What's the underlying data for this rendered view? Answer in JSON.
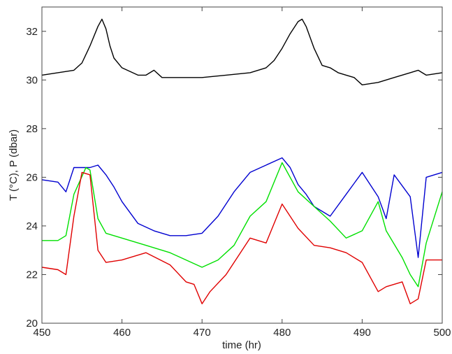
{
  "chart_data": {
    "type": "line",
    "title": "",
    "xlabel": "time (hr)",
    "ylabel": "T (°C), P (dbar)",
    "xlim": [
      450,
      500
    ],
    "ylim": [
      20,
      33
    ],
    "xticks": [
      450,
      460,
      470,
      480,
      490,
      500
    ],
    "yticks": [
      20,
      22,
      24,
      26,
      28,
      30,
      32
    ],
    "grid": false,
    "legend": "none",
    "series": [
      {
        "color": "#000000",
        "x": [
          450,
          452,
          454,
          455,
          456,
          457,
          457.5,
          458,
          458.5,
          459,
          460,
          462,
          463,
          464,
          465,
          467,
          470,
          473,
          476,
          478,
          479,
          480,
          481,
          482,
          482.5,
          483,
          484,
          485,
          486,
          487,
          488,
          489,
          490,
          492,
          494,
          496,
          497,
          498,
          500
        ],
        "values": [
          30.2,
          30.3,
          30.4,
          30.7,
          31.4,
          32.2,
          32.5,
          32.1,
          31.4,
          30.9,
          30.5,
          30.2,
          30.2,
          30.4,
          30.1,
          30.1,
          30.1,
          30.2,
          30.3,
          30.5,
          30.8,
          31.3,
          31.9,
          32.4,
          32.5,
          32.2,
          31.3,
          30.6,
          30.5,
          30.3,
          30.2,
          30.1,
          29.8,
          29.9,
          30.1,
          30.3,
          30.4,
          30.2,
          30.3
        ]
      },
      {
        "color": "#0000d0",
        "x": [
          450,
          452,
          453,
          454,
          456,
          457,
          458,
          459,
          460,
          462,
          464,
          466,
          468,
          470,
          472,
          474,
          476,
          478,
          480,
          481,
          482,
          483,
          484,
          486,
          488,
          490,
          492,
          493,
          494,
          496,
          497,
          498,
          500
        ],
        "values": [
          25.9,
          25.8,
          25.4,
          26.4,
          26.4,
          26.5,
          26.1,
          25.6,
          25.0,
          24.1,
          23.8,
          23.6,
          23.6,
          23.7,
          24.4,
          25.4,
          26.2,
          26.5,
          26.8,
          26.4,
          25.7,
          25.3,
          24.8,
          24.4,
          25.3,
          26.2,
          25.2,
          24.3,
          26.1,
          25.2,
          22.7,
          26.0,
          26.2
        ]
      },
      {
        "color": "#00e000",
        "x": [
          450,
          452,
          453,
          454,
          455.5,
          456,
          457,
          458,
          460,
          463,
          466,
          468,
          470,
          472,
          474,
          476,
          478,
          480,
          482,
          484,
          486,
          488,
          490,
          492,
          493,
          495,
          496,
          497,
          498,
          500
        ],
        "values": [
          23.4,
          23.4,
          23.6,
          25.3,
          26.4,
          26.3,
          24.3,
          23.7,
          23.5,
          23.2,
          22.9,
          22.6,
          22.3,
          22.6,
          23.2,
          24.4,
          25.0,
          26.6,
          25.4,
          24.8,
          24.2,
          23.5,
          23.8,
          25.0,
          23.8,
          22.7,
          22.0,
          21.5,
          23.3,
          25.4
        ]
      },
      {
        "color": "#e00000",
        "x": [
          450,
          452,
          453,
          454,
          455,
          456,
          457,
          458,
          460,
          463,
          466,
          468,
          469,
          470,
          471,
          473,
          476,
          478,
          480,
          482,
          484,
          486,
          488,
          490,
          492,
          493,
          495,
          496,
          497,
          498,
          500
        ],
        "values": [
          22.3,
          22.2,
          22.0,
          24.4,
          26.2,
          26.1,
          23.0,
          22.5,
          22.6,
          22.9,
          22.4,
          21.7,
          21.6,
          20.8,
          21.3,
          22.0,
          23.5,
          23.3,
          24.9,
          23.9,
          23.2,
          23.1,
          22.9,
          22.5,
          21.3,
          21.5,
          21.7,
          20.8,
          21.0,
          22.6,
          22.6
        ]
      }
    ]
  }
}
